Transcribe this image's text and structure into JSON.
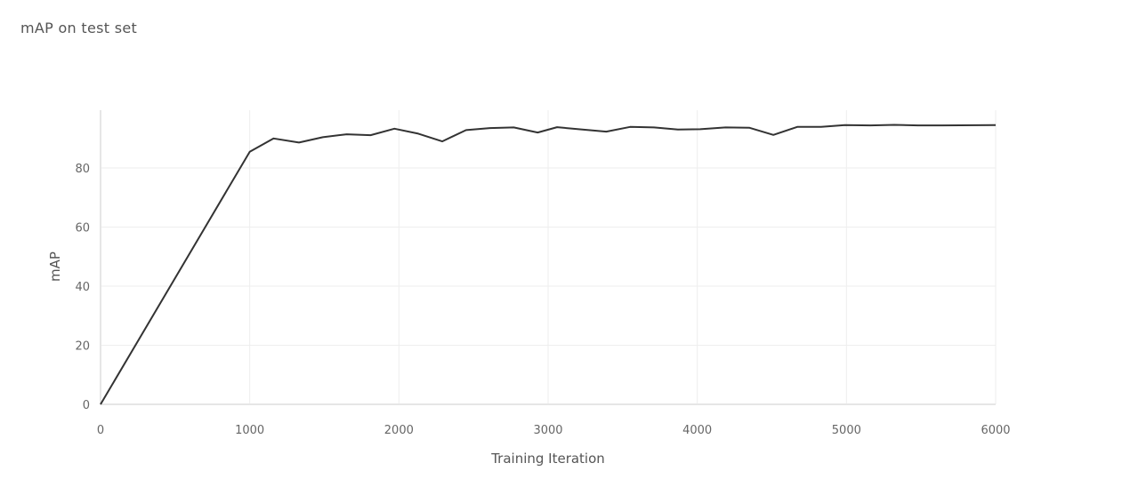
{
  "chart_data": {
    "type": "line",
    "title": "mAP on test set",
    "xlabel": "Training Iteration",
    "ylabel": "mAP",
    "xlim": [
      0,
      6000
    ],
    "ylim": [
      -2,
      100
    ],
    "grid": true,
    "x_ticks": [
      0,
      1000,
      2000,
      3000,
      4000,
      5000,
      6000
    ],
    "y_ticks": [
      0,
      20,
      40,
      60,
      80
    ],
    "x_tick_labels": [
      "0",
      "1000",
      "2000",
      "3000",
      "4000",
      "5000",
      "6000"
    ],
    "y_tick_labels": [
      "0",
      "20",
      "40",
      "60",
      "80"
    ],
    "series": [
      {
        "color": "#333333",
        "x": [
          0,
          1000,
          1160,
          1330,
          1490,
          1650,
          1810,
          1970,
          2130,
          2290,
          2450,
          2610,
          2770,
          2930,
          3060,
          3230,
          3390,
          3550,
          3710,
          3870,
          4020,
          4190,
          4350,
          4510,
          4670,
          4830,
          4990,
          5160,
          5320,
          5480,
          5640,
          6000
        ],
        "y": [
          0,
          85.5,
          90.0,
          88.6,
          90.4,
          91.4,
          91.1,
          93.3,
          91.6,
          89.0,
          92.8,
          93.5,
          93.7,
          92.0,
          93.8,
          93.0,
          92.3,
          93.9,
          93.7,
          93.0,
          93.1,
          93.7,
          93.6,
          91.2,
          93.9,
          93.9,
          94.5,
          94.4,
          94.6,
          94.4,
          94.4,
          94.5
        ]
      }
    ]
  }
}
